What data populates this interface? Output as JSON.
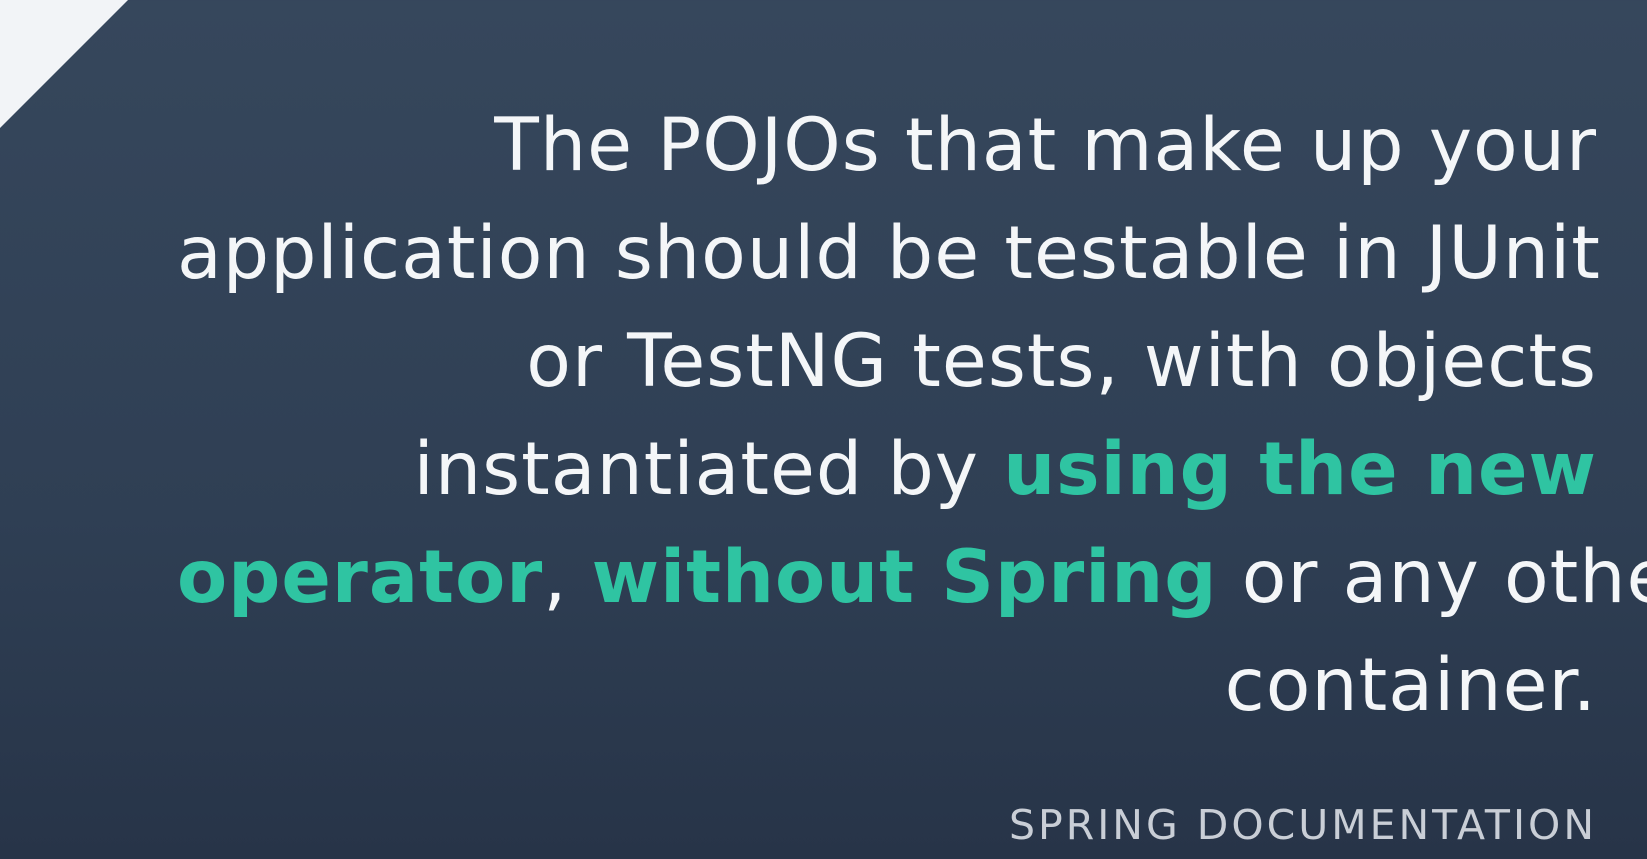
{
  "quote": {
    "line1": "The POJOs that make up your",
    "line2": "application should be testable in JUnit",
    "line3": "or TestNG tests, with objects",
    "line4_plain": "instantiated by ",
    "line4_highlight": "using the new",
    "line5_highlight_a": "operator",
    "line5_comma": ", ",
    "line5_highlight_b": "without Spring",
    "line5_plain": " or any other",
    "line6": "container."
  },
  "source": "SPRING DOCUMENTATION",
  "colors": {
    "background": "#314257",
    "text": "#f4f6f8",
    "highlight": "#2fc4a2",
    "corner": "#f2f4f7",
    "source": "#c9ced6"
  }
}
